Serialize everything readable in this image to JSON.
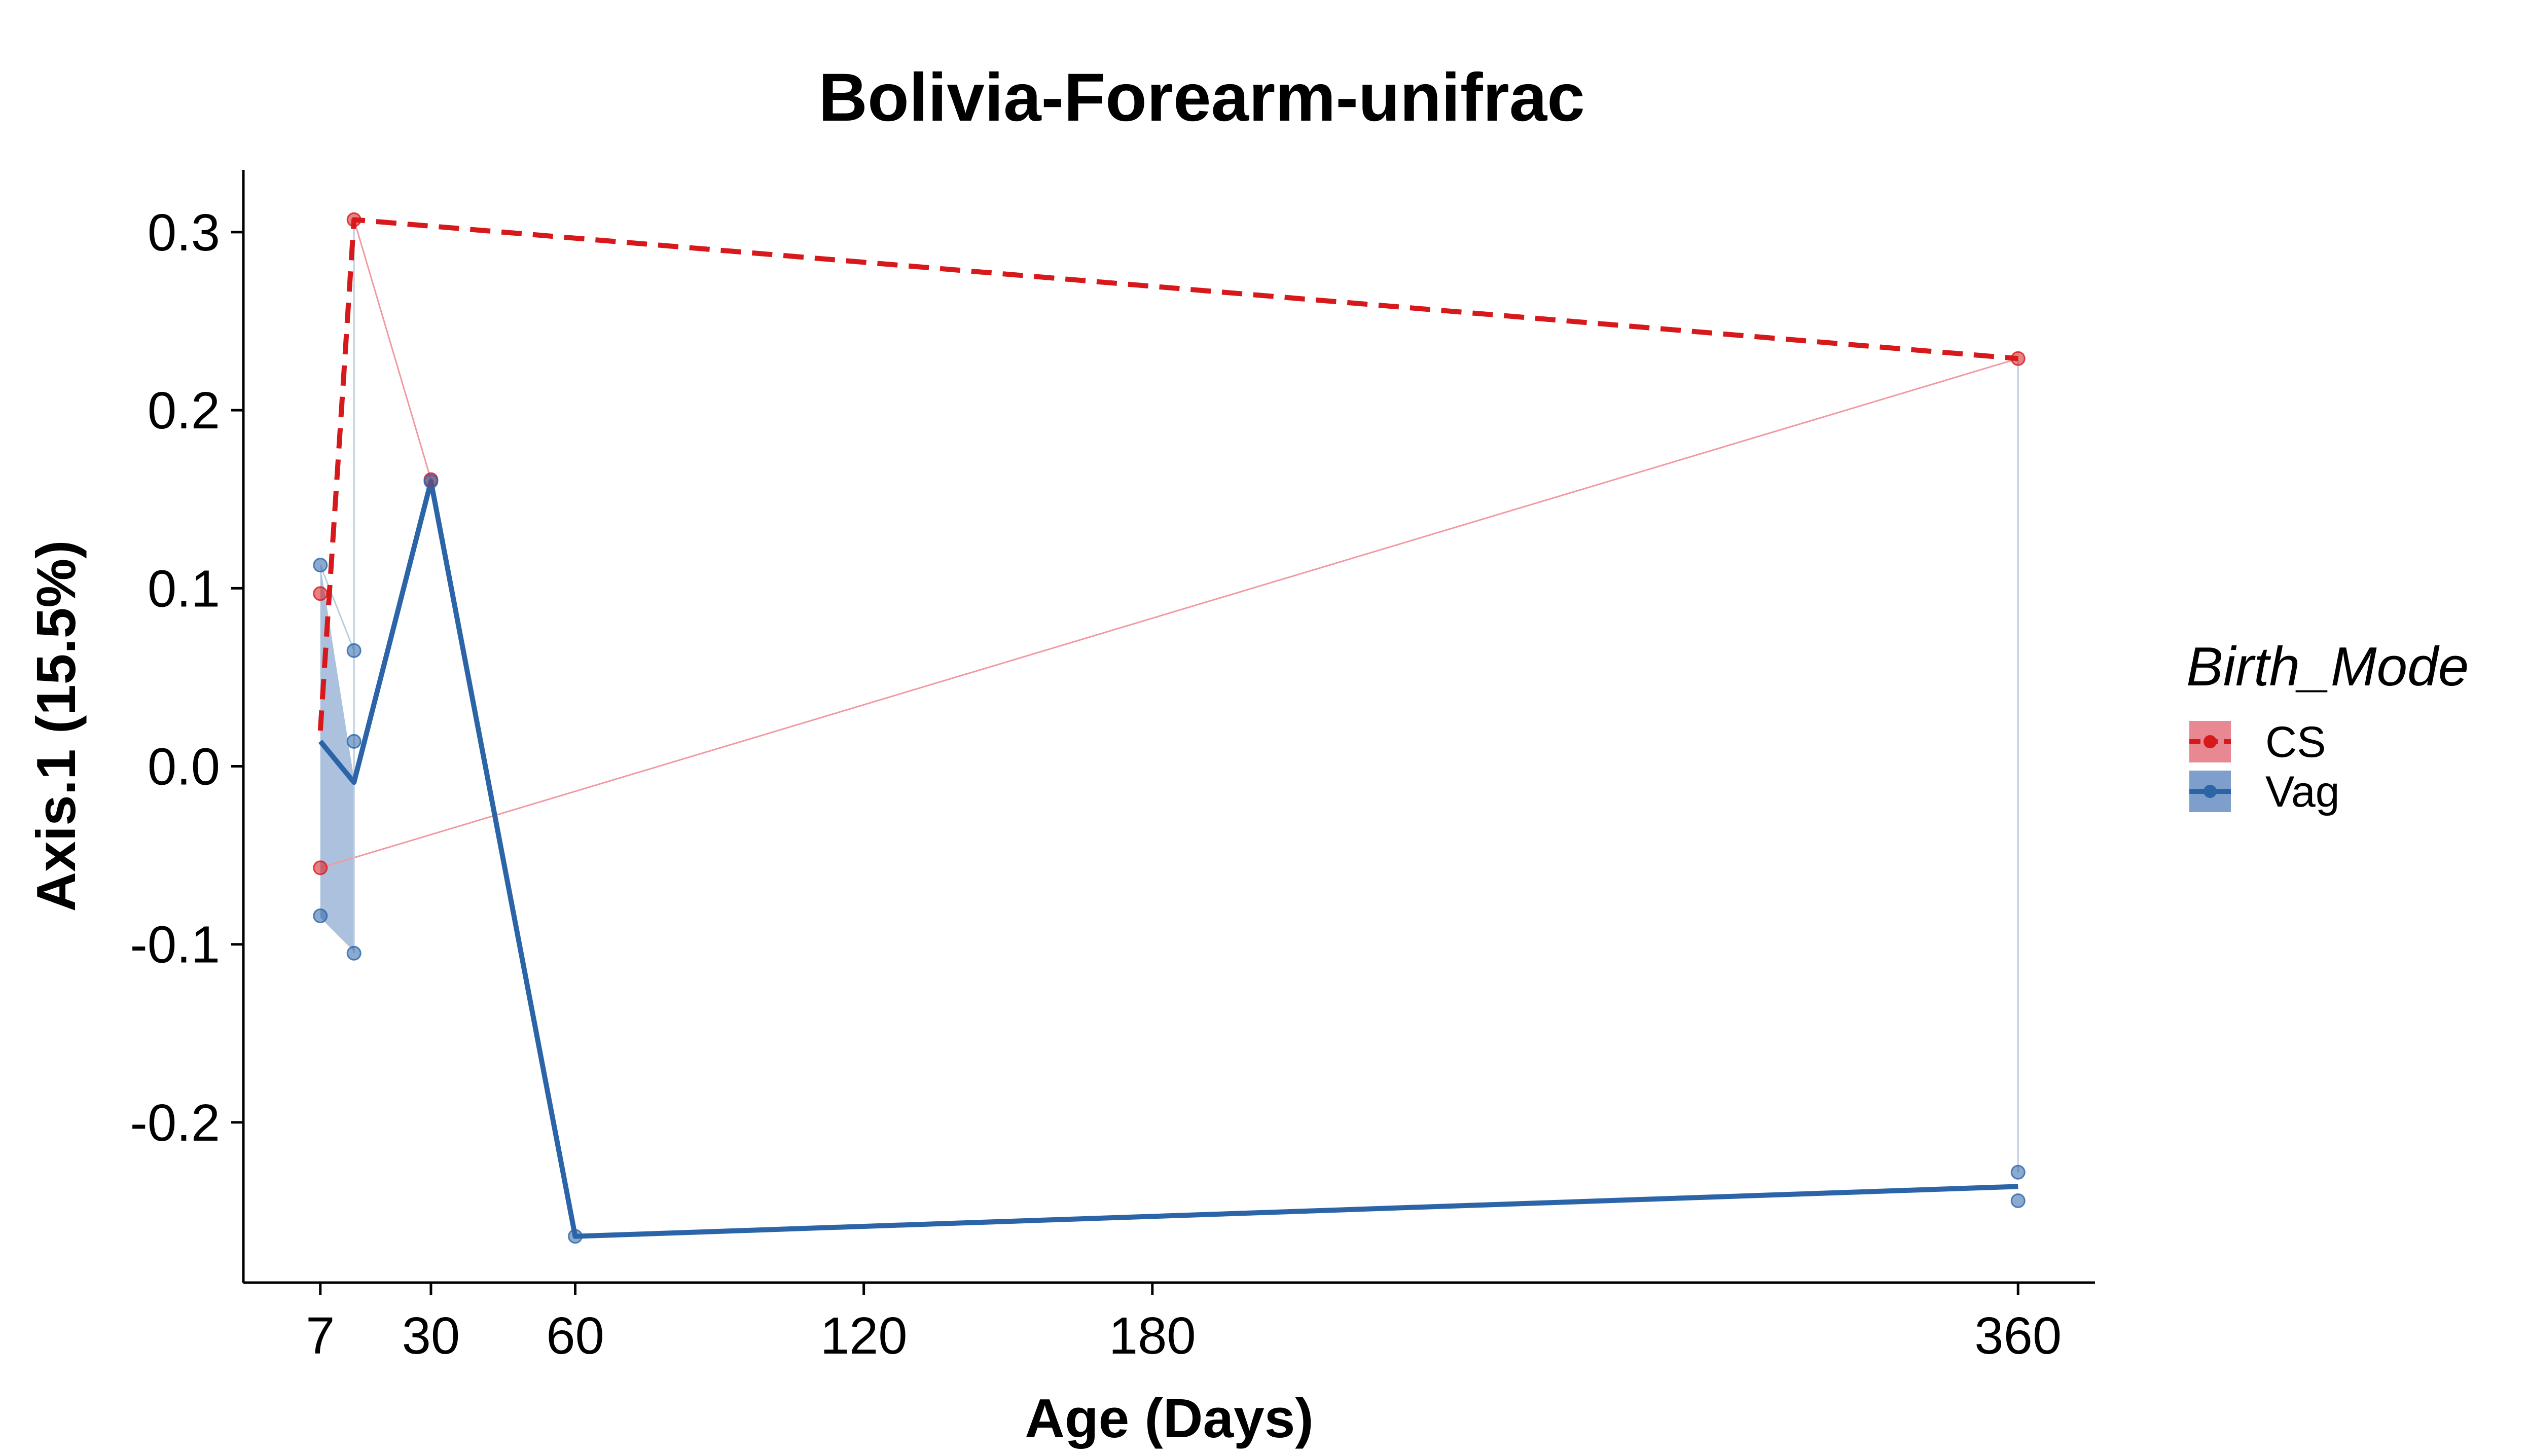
{
  "chart_data": {
    "type": "line",
    "title": "Bolivia-Forearm-unifrac",
    "xlabel": "Age (Days)",
    "ylabel": "Axis.1 (15.5%)",
    "xlim": [
      -9,
      376
    ],
    "ylim": [
      -0.29,
      0.335
    ],
    "x_ticks": [
      7,
      30,
      60,
      120,
      180,
      360
    ],
    "x_tick_labels": [
      "7",
      "30",
      "60",
      "120",
      "180",
      "360"
    ],
    "y_ticks": [
      0.3,
      0.2,
      0.1,
      0.0,
      -0.1,
      -0.2
    ],
    "y_tick_labels": [
      "0.3",
      "0.2",
      "0.1",
      "0.0",
      "-0.1",
      "-0.2"
    ],
    "grid": false,
    "legend": {
      "title": "Birth_Mode",
      "position": "right",
      "entries": [
        "CS",
        "Vag"
      ]
    },
    "colors": {
      "CS": "#d7191c",
      "CS_fill": "#e88892",
      "Vag": "#2c64a8",
      "Vag_fill": "#7e9fcc",
      "subject_line_cs": "#f09aa0",
      "subject_line_vag": "#b9cde0"
    },
    "series": [
      {
        "name": "CS",
        "line_style": "dashed",
        "mean_line": [
          {
            "x": 7,
            "y": 0.02
          },
          {
            "x": 14,
            "y": 0.307
          },
          {
            "x": 360,
            "y": 0.229
          }
        ],
        "points": [
          {
            "x": 7,
            "y": 0.097
          },
          {
            "x": 7,
            "y": -0.057
          },
          {
            "x": 14,
            "y": 0.307
          },
          {
            "x": 30,
            "y": 0.161
          },
          {
            "x": 360,
            "y": 0.229
          }
        ]
      },
      {
        "name": "Vag",
        "line_style": "solid",
        "mean_line": [
          {
            "x": 7,
            "y": 0.014
          },
          {
            "x": 14,
            "y": -0.009
          },
          {
            "x": 30,
            "y": 0.16
          },
          {
            "x": 60,
            "y": -0.264
          },
          {
            "x": 360,
            "y": -0.236
          }
        ],
        "ribbon": [
          {
            "x": 7,
            "lo": -0.085,
            "hi": 0.113
          },
          {
            "x": 14,
            "lo": -0.104,
            "hi": -0.007
          }
        ],
        "points": [
          {
            "x": 7,
            "y": 0.113
          },
          {
            "x": 7,
            "y": -0.084
          },
          {
            "x": 14,
            "y": 0.065
          },
          {
            "x": 14,
            "y": 0.014
          },
          {
            "x": 14,
            "y": -0.105
          },
          {
            "x": 30,
            "y": 0.16
          },
          {
            "x": 60,
            "y": -0.264
          },
          {
            "x": 360,
            "y": -0.228
          },
          {
            "x": 360,
            "y": -0.244
          }
        ]
      }
    ],
    "subject_lines": [
      {
        "group": "CS",
        "points": [
          {
            "x": 7,
            "y": -0.057
          },
          {
            "x": 360,
            "y": 0.229
          }
        ]
      },
      {
        "group": "CS",
        "points": [
          {
            "x": 14,
            "y": 0.307
          },
          {
            "x": 30,
            "y": 0.161
          }
        ]
      },
      {
        "group": "Vag",
        "points": [
          {
            "x": 7,
            "y": 0.113
          },
          {
            "x": 14,
            "y": 0.065
          }
        ]
      },
      {
        "group": "Vag",
        "points": [
          {
            "x": 14,
            "y": 0.307
          },
          {
            "x": 14,
            "y": -0.105
          }
        ]
      },
      {
        "group": "Vag",
        "points": [
          {
            "x": 360,
            "y": 0.229
          },
          {
            "x": 360,
            "y": -0.228
          }
        ]
      }
    ]
  }
}
